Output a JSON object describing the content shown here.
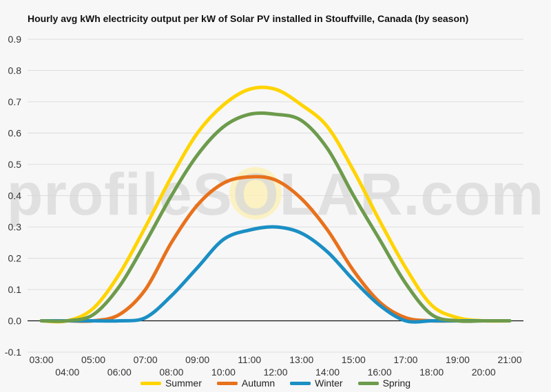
{
  "chart_data": {
    "type": "line",
    "title": "Hourly avg kWh electricity output per kW of Solar PV installed in Stouffville, Canada (by season)",
    "watermark": "profileSOLAR.com",
    "xlabel": "",
    "ylabel": "",
    "ylim": [
      -0.1,
      0.9
    ],
    "yticks": [
      "-0.1",
      "0.0",
      "0.1",
      "0.2",
      "0.3",
      "0.4",
      "0.5",
      "0.6",
      "0.7",
      "0.8",
      "0.9"
    ],
    "x_tick_labels": [
      "03:00",
      "04:00",
      "05:00",
      "06:00",
      "07:00",
      "08:00",
      "09:00",
      "10:00",
      "11:00",
      "12:00",
      "13:00",
      "14:00",
      "15:00",
      "16:00",
      "17:00",
      "18:00",
      "19:00",
      "20:00",
      "21:00"
    ],
    "x": [
      3,
      4,
      5,
      6,
      7,
      8,
      9,
      10,
      11,
      12,
      13,
      14,
      15,
      16,
      17,
      18,
      19,
      20,
      21
    ],
    "grid": true,
    "legend_position": "bottom",
    "series": [
      {
        "name": "Summer",
        "color": "#ffd400",
        "values": [
          0.0,
          0.0,
          0.04,
          0.15,
          0.3,
          0.46,
          0.6,
          0.69,
          0.74,
          0.74,
          0.69,
          0.62,
          0.48,
          0.32,
          0.17,
          0.05,
          0.01,
          0.0,
          0.0
        ]
      },
      {
        "name": "Autumn",
        "color": "#e8711c",
        "values": [
          0.0,
          0.0,
          0.0,
          0.02,
          0.1,
          0.25,
          0.37,
          0.44,
          0.46,
          0.45,
          0.39,
          0.29,
          0.16,
          0.06,
          0.01,
          0.0,
          0.0,
          0.0,
          0.0
        ]
      },
      {
        "name": "Winter",
        "color": "#1b8fc4",
        "values": [
          0.0,
          0.0,
          0.0,
          0.0,
          0.01,
          0.08,
          0.17,
          0.26,
          0.29,
          0.3,
          0.28,
          0.22,
          0.13,
          0.05,
          0.0,
          0.0,
          0.0,
          0.0,
          0.0
        ]
      },
      {
        "name": "Spring",
        "color": "#6d9b4c",
        "values": [
          0.0,
          0.0,
          0.02,
          0.11,
          0.25,
          0.4,
          0.53,
          0.62,
          0.66,
          0.66,
          0.64,
          0.55,
          0.4,
          0.26,
          0.12,
          0.02,
          0.0,
          0.0,
          0.0
        ]
      }
    ]
  }
}
